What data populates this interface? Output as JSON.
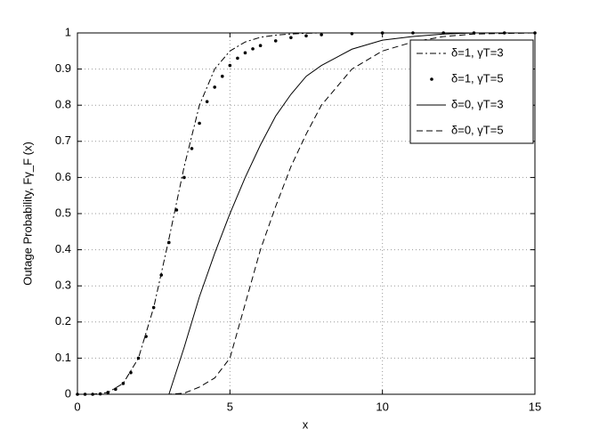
{
  "chart_data": {
    "type": "line",
    "xlabel": "x",
    "ylabel": "Outage Probability, Fγ_F (x)",
    "xlim": [
      0,
      15
    ],
    "ylim": [
      0,
      1
    ],
    "xticks": [
      0,
      5,
      10,
      15
    ],
    "yticks": [
      0,
      0.1,
      0.2,
      0.3,
      0.4,
      0.5,
      0.6,
      0.7,
      0.8,
      0.9,
      1
    ],
    "grid": true,
    "legend": "upper right",
    "series": [
      {
        "name": "δ=1, γT=3",
        "color": "#000000",
        "dash": "7 3 2 3",
        "marker": "none",
        "x": [
          0,
          0.5,
          1,
          1.5,
          2,
          2.5,
          3,
          3.5,
          4,
          4.5,
          5,
          5.5,
          6,
          6.5,
          7,
          7.5,
          8,
          9,
          15
        ],
        "values": [
          0,
          0,
          0.005,
          0.03,
          0.1,
          0.24,
          0.43,
          0.63,
          0.8,
          0.9,
          0.95,
          0.975,
          0.988,
          0.994,
          0.997,
          0.999,
          1,
          1,
          1
        ]
      },
      {
        "name": "δ=1, γT=5",
        "color": "#000000",
        "dash": "none",
        "marker": "dot",
        "x": [
          0,
          0.25,
          0.5,
          0.75,
          1,
          1.25,
          1.5,
          1.75,
          2,
          2.25,
          2.5,
          2.75,
          3,
          3.25,
          3.5,
          3.75,
          4,
          4.25,
          4.5,
          4.75,
          5,
          5.25,
          5.5,
          5.75,
          6,
          6.5,
          7,
          7.5,
          8,
          9,
          10,
          11,
          12,
          13,
          14,
          15
        ],
        "values": [
          0,
          0,
          0,
          0.001,
          0.005,
          0.014,
          0.03,
          0.06,
          0.1,
          0.16,
          0.24,
          0.33,
          0.42,
          0.51,
          0.6,
          0.68,
          0.75,
          0.81,
          0.85,
          0.88,
          0.91,
          0.93,
          0.945,
          0.956,
          0.965,
          0.978,
          0.987,
          0.992,
          0.995,
          0.998,
          1,
          1,
          1,
          1,
          1,
          1
        ]
      },
      {
        "name": "δ=0, γT=3",
        "color": "#000000",
        "dash": "none",
        "marker": "none",
        "x": [
          0,
          3,
          3.5,
          4,
          4.5,
          5,
          5.5,
          6,
          6.5,
          7,
          7.5,
          8,
          9,
          10,
          11,
          12,
          13,
          15
        ],
        "values": [
          0,
          0,
          0.13,
          0.27,
          0.39,
          0.5,
          0.6,
          0.69,
          0.77,
          0.83,
          0.88,
          0.91,
          0.955,
          0.98,
          0.99,
          0.997,
          1,
          1
        ]
      },
      {
        "name": "δ=0, γT=5",
        "color": "#000000",
        "dash": "7 4",
        "marker": "none",
        "x": [
          0,
          3,
          3.5,
          4,
          4.5,
          5,
          5.5,
          6,
          6.5,
          7,
          7.5,
          8,
          9,
          10,
          11,
          12,
          13,
          15
        ],
        "values": [
          0,
          0,
          0.003,
          0.02,
          0.045,
          0.1,
          0.25,
          0.4,
          0.52,
          0.63,
          0.72,
          0.8,
          0.9,
          0.95,
          0.975,
          0.99,
          0.997,
          1
        ]
      }
    ]
  }
}
